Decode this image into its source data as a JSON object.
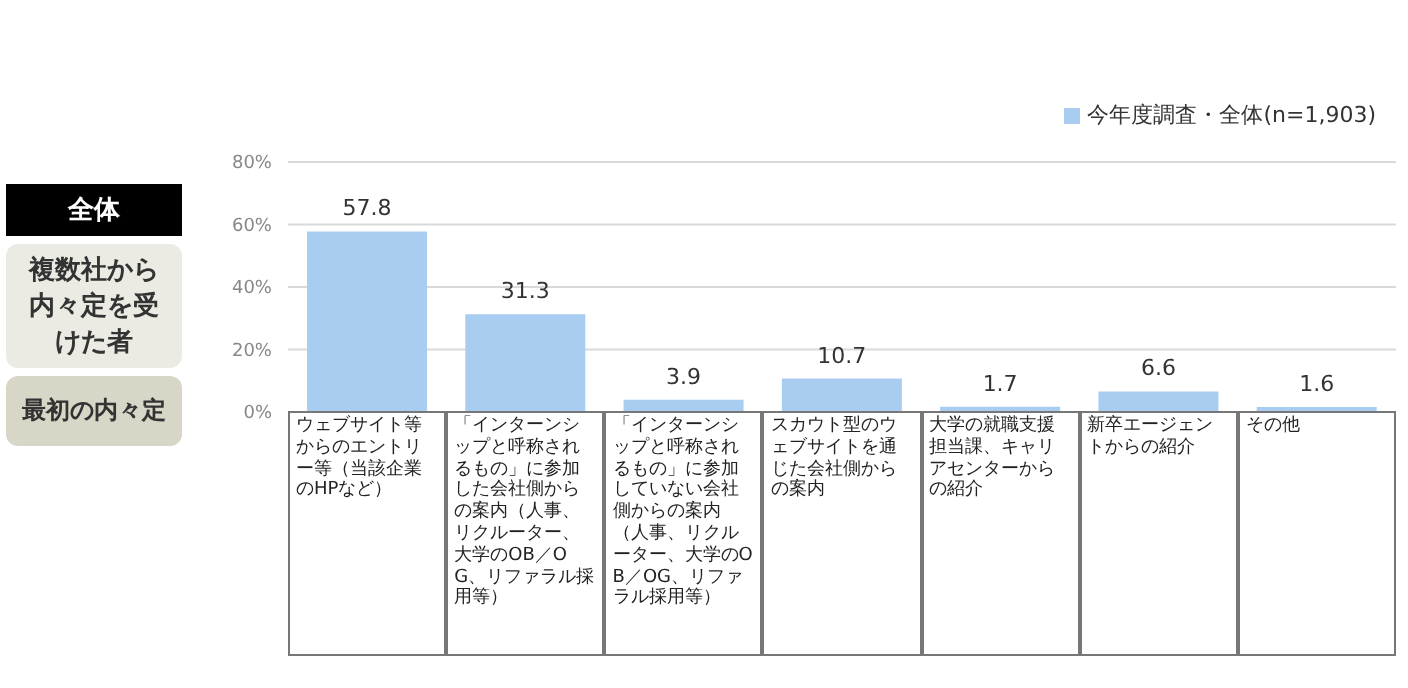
{
  "chart_data": {
    "type": "bar",
    "categories": [
      "ウェブサイト等からのエントリー等（当該企業のHPなど）",
      "「インターンシップと呼称されるもの」に参加した会社側からの案内（人事、リクルーター、大学のOB／OG、リファラル採用等）",
      "「インターンシップと呼称されるもの」に参加していない会社側からの案内（人事、リクルーター、大学のOB／OG、リファラル採用等）",
      "スカウト型のウェブサイトを通じた会社側からの案内",
      "大学の就職支援担当課、キャリアセンターからの紹介",
      "新卒エージェントからの紹介",
      "その他"
    ],
    "series": [
      {
        "name": "今年度調査・全体(n=1,903)",
        "color": "#a9cdf0",
        "values": [
          57.8,
          31.3,
          3.9,
          10.7,
          1.7,
          6.6,
          1.6
        ]
      }
    ],
    "ylim": [
      0,
      80
    ],
    "yticks": [
      {
        "value": 0,
        "label": "0%"
      },
      {
        "value": 20,
        "label": "20%"
      },
      {
        "value": 40,
        "label": "40%"
      },
      {
        "value": 60,
        "label": "60%"
      },
      {
        "value": 80,
        "label": "80%"
      }
    ],
    "grid": "y",
    "legend": "top right",
    "data_labels": true,
    "annotations": [
      "全体",
      "複数社から内々定を受けた者",
      "最初の内々定"
    ]
  }
}
